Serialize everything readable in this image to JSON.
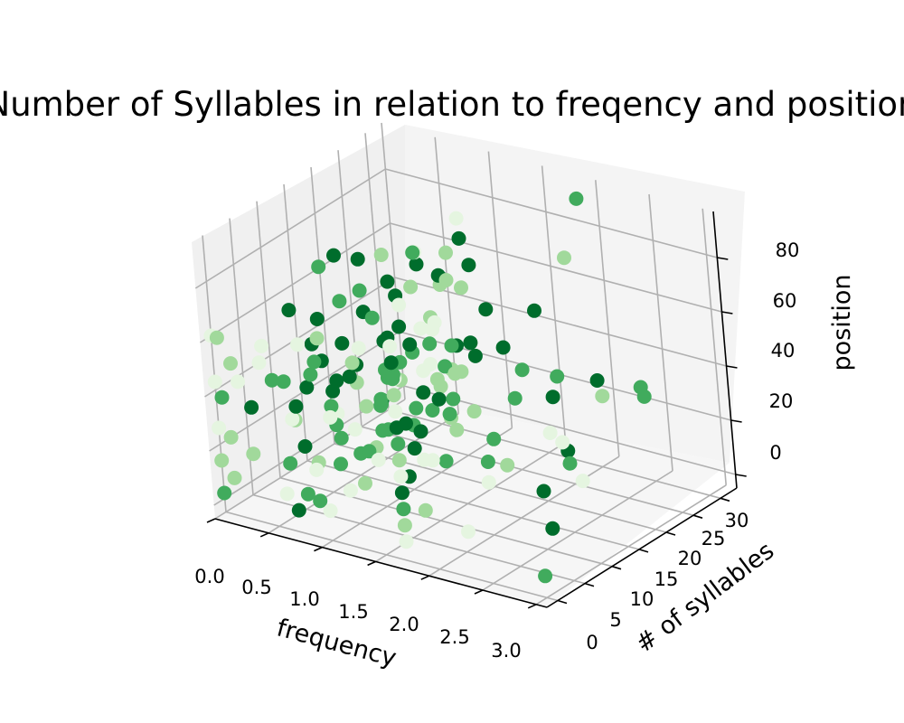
{
  "chart_data": {
    "type": "scatter3d",
    "title": "Number of Syllables in relation to freqency and position",
    "xlabel": "frequency",
    "ylabel": "# of syllables",
    "zlabel": "position",
    "xlim": [
      0,
      3.1
    ],
    "ylim": [
      -2,
      33
    ],
    "zlim": [
      -5,
      97
    ],
    "xticks": [
      "0.0",
      "0.5",
      "1.0",
      "1.5",
      "2.0",
      "2.5",
      "3.0"
    ],
    "yticks": [
      "0",
      "5",
      "10",
      "15",
      "20",
      "25",
      "30"
    ],
    "zticks": [
      "0",
      "20",
      "40",
      "60",
      "80"
    ],
    "grid": true,
    "colormap": [
      "#e5f5e0",
      "#a1d99b",
      "#41ab5d",
      "#006d2c"
    ],
    "series": [
      {
        "points": [
          [
            0,
            0,
            2
          ],
          [
            0,
            0,
            14
          ],
          [
            0,
            0,
            26
          ],
          [
            0,
            0,
            43
          ],
          [
            0,
            0,
            60
          ],
          [
            0,
            1,
            58
          ],
          [
            0,
            1,
            36
          ],
          [
            0,
            2,
            20
          ],
          [
            0,
            2,
            5
          ],
          [
            0,
            3,
            46
          ],
          [
            0,
            4,
            38
          ],
          [
            0,
            6,
            26
          ],
          [
            0,
            8,
            40
          ],
          [
            0,
            10,
            31
          ],
          [
            0,
            12,
            28
          ],
          [
            0.2,
            2,
            16
          ],
          [
            0.2,
            5,
            52
          ],
          [
            0.3,
            8,
            22
          ],
          [
            0.3,
            12,
            45
          ],
          [
            0.4,
            14,
            30
          ],
          [
            0.6,
            0,
            8
          ],
          [
            0.6,
            2,
            33
          ],
          [
            0.6,
            4,
            58
          ],
          [
            0.6,
            6,
            12
          ],
          [
            0.6,
            8,
            47
          ],
          [
            0.6,
            10,
            25
          ],
          [
            0.6,
            12,
            64
          ],
          [
            0.6,
            14,
            38
          ],
          [
            0.6,
            16,
            55
          ],
          [
            0.6,
            18,
            20
          ],
          [
            0.6,
            20,
            71
          ],
          [
            0.6,
            22,
            42
          ],
          [
            0.6,
            24,
            30
          ],
          [
            0.6,
            26,
            60
          ],
          [
            0.6,
            28,
            15
          ],
          [
            0.6,
            30,
            50
          ],
          [
            0.6,
            1,
            18
          ],
          [
            0.6,
            3,
            72
          ],
          [
            0.6,
            5,
            41
          ],
          [
            0.6,
            9,
            29
          ],
          [
            0.7,
            0,
            3
          ],
          [
            0.7,
            2,
            24
          ],
          [
            0.7,
            4,
            48
          ],
          [
            0.7,
            6,
            66
          ],
          [
            0.7,
            8,
            10
          ],
          [
            0.7,
            10,
            52
          ],
          [
            0.7,
            12,
            35
          ],
          [
            0.7,
            14,
            78
          ],
          [
            0.7,
            16,
            22
          ],
          [
            0.7,
            18,
            44
          ],
          [
            0.7,
            20,
            57
          ],
          [
            0.7,
            22,
            13
          ],
          [
            0.7,
            24,
            68
          ],
          [
            0.7,
            26,
            37
          ],
          [
            0.7,
            28,
            51
          ],
          [
            0.7,
            30,
            26
          ],
          [
            0.7,
            32,
            63
          ],
          [
            0.7,
            1,
            40
          ],
          [
            0.7,
            7,
            84
          ],
          [
            0.7,
            11,
            19
          ],
          [
            0.8,
            0,
            10
          ],
          [
            0.8,
            3,
            55
          ],
          [
            0.8,
            6,
            28
          ],
          [
            0.8,
            9,
            42
          ],
          [
            0.8,
            12,
            70
          ],
          [
            0.8,
            15,
            15
          ],
          [
            0.8,
            18,
            36
          ],
          [
            0.8,
            21,
            60
          ],
          [
            0.8,
            24,
            45
          ],
          [
            0.8,
            27,
            22
          ],
          [
            0.8,
            30,
            74
          ],
          [
            0.8,
            2,
            5
          ],
          [
            0.8,
            5,
            32
          ],
          [
            0.8,
            8,
            88
          ],
          [
            0.8,
            11,
            50
          ],
          [
            0.8,
            14,
            25
          ],
          [
            0.8,
            17,
            67
          ],
          [
            0.8,
            20,
            40
          ],
          [
            0.8,
            23,
            12
          ],
          [
            0.8,
            26,
            58
          ],
          [
            0.9,
            0,
            20
          ],
          [
            0.9,
            4,
            44
          ],
          [
            0.9,
            8,
            16
          ],
          [
            0.9,
            12,
            61
          ],
          [
            0.9,
            16,
            33
          ],
          [
            0.9,
            20,
            75
          ],
          [
            0.9,
            24,
            28
          ],
          [
            0.9,
            28,
            52
          ],
          [
            0.9,
            32,
            39
          ],
          [
            0.9,
            2,
            66
          ],
          [
            1.0,
            0,
            6
          ],
          [
            1.0,
            3,
            29
          ],
          [
            1.0,
            6,
            53
          ],
          [
            1.0,
            9,
            18
          ],
          [
            1.0,
            12,
            40
          ],
          [
            1.0,
            15,
            63
          ],
          [
            1.0,
            18,
            27
          ],
          [
            1.0,
            21,
            49
          ],
          [
            1.0,
            24,
            71
          ],
          [
            1.0,
            27,
            34
          ],
          [
            1.1,
            2,
            12
          ],
          [
            1.1,
            6,
            38
          ],
          [
            1.1,
            10,
            57
          ],
          [
            1.1,
            14,
            21
          ],
          [
            1.1,
            18,
            46
          ],
          [
            1.1,
            22,
            30
          ],
          [
            1.1,
            26,
            65
          ],
          [
            1.2,
            4,
            25
          ],
          [
            1.2,
            8,
            50
          ],
          [
            1.2,
            12,
            16
          ],
          [
            1.2,
            16,
            42
          ],
          [
            1.2,
            20,
            68
          ],
          [
            1.2,
            24,
            35
          ],
          [
            1.3,
            1,
            18
          ],
          [
            1.3,
            5,
            44
          ],
          [
            1.3,
            9,
            30
          ],
          [
            1.3,
            13,
            60
          ],
          [
            1.3,
            17,
            22
          ],
          [
            1.4,
            3,
            36
          ],
          [
            1.4,
            7,
            14
          ],
          [
            1.4,
            11,
            48
          ],
          [
            1.4,
            15,
            27
          ],
          [
            1.5,
            0,
            30
          ],
          [
            1.5,
            4,
            55
          ],
          [
            1.5,
            8,
            20
          ],
          [
            1.5,
            12,
            42
          ],
          [
            1.6,
            2,
            60
          ],
          [
            1.6,
            6,
            34
          ],
          [
            1.6,
            10,
            18
          ],
          [
            1.6,
            14,
            46
          ],
          [
            1.7,
            0,
            2
          ],
          [
            1.7,
            0,
            8
          ],
          [
            1.7,
            0,
            14
          ],
          [
            1.7,
            0,
            20
          ],
          [
            1.7,
            0,
            26
          ],
          [
            1.7,
            0,
            32
          ],
          [
            1.7,
            0,
            38
          ],
          [
            1.7,
            0,
            44
          ],
          [
            1.7,
            0,
            50
          ],
          [
            1.7,
            0,
            56
          ],
          [
            1.7,
            0,
            62
          ],
          [
            1.7,
            0,
            68
          ],
          [
            1.7,
            0,
            74
          ],
          [
            1.8,
            2,
            12
          ],
          [
            1.8,
            4,
            28
          ],
          [
            1.8,
            6,
            48
          ],
          [
            1.8,
            9,
            64
          ],
          [
            1.8,
            12,
            36
          ],
          [
            1.8,
            15,
            22
          ],
          [
            1.8,
            18,
            52
          ],
          [
            1.8,
            21,
            40
          ],
          [
            1.8,
            24,
            58
          ],
          [
            1.8,
            27,
            30
          ],
          [
            1.8,
            30,
            70
          ],
          [
            1.8,
            33,
            88
          ],
          [
            2.0,
            5,
            40
          ],
          [
            2.0,
            10,
            22
          ],
          [
            2.1,
            3,
            55
          ],
          [
            2.1,
            8,
            18
          ],
          [
            2.2,
            12,
            45
          ],
          [
            2.3,
            0,
            12
          ],
          [
            2.4,
            6,
            30
          ],
          [
            2.5,
            15,
            25
          ],
          [
            2.6,
            20,
            40
          ],
          [
            2.7,
            25,
            38
          ],
          [
            3.0,
            0,
            3
          ],
          [
            3.0,
            1,
            33
          ],
          [
            3.0,
            2,
            18
          ],
          [
            3.0,
            3,
            52
          ],
          [
            3.0,
            4,
            64
          ],
          [
            3.0,
            5,
            46
          ],
          [
            3.0,
            6,
            37
          ],
          [
            3.0,
            8,
            28
          ],
          [
            3.0,
            12,
            60
          ],
          [
            3.0,
            20,
            44
          ]
        ]
      }
    ]
  }
}
